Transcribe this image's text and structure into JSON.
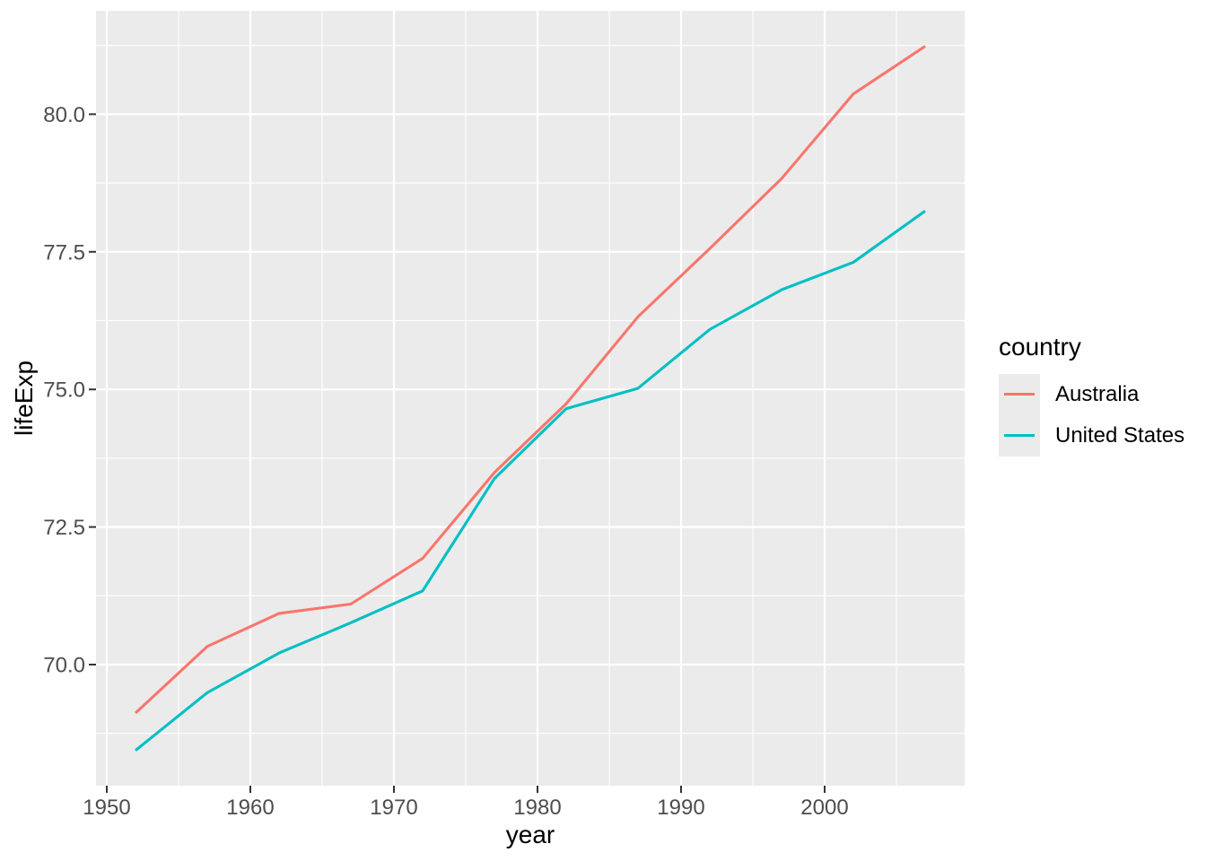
{
  "chart_data": {
    "type": "line",
    "title": "",
    "xlabel": "year",
    "ylabel": "lifeExp",
    "x": [
      1952,
      1957,
      1962,
      1967,
      1972,
      1977,
      1982,
      1987,
      1992,
      1997,
      2002,
      2007
    ],
    "series": [
      {
        "name": "Australia",
        "color": "#F8766D",
        "values": [
          69.12,
          70.33,
          70.93,
          71.1,
          71.93,
          73.49,
          74.74,
          76.32,
          77.56,
          78.83,
          80.37,
          81.235
        ]
      },
      {
        "name": "United States",
        "color": "#00BFC4",
        "values": [
          68.44,
          69.49,
          70.21,
          70.76,
          71.34,
          73.38,
          74.65,
          75.02,
          76.09,
          76.81,
          77.31,
          78.242
        ]
      }
    ],
    "xlim": [
      1949.25,
      2009.75
    ],
    "ylim": [
      67.8,
      81.88
    ],
    "x_ticks": [
      {
        "value": 1950,
        "label": "1950"
      },
      {
        "value": 1960,
        "label": "1960"
      },
      {
        "value": 1970,
        "label": "1970"
      },
      {
        "value": 1980,
        "label": "1980"
      },
      {
        "value": 1990,
        "label": "1990"
      },
      {
        "value": 2000,
        "label": "2000"
      }
    ],
    "y_ticks": [
      {
        "value": 70.0,
        "label": "70.0"
      },
      {
        "value": 72.5,
        "label": "72.5"
      },
      {
        "value": 75.0,
        "label": "75.0"
      },
      {
        "value": 77.5,
        "label": "77.5"
      },
      {
        "value": 80.0,
        "label": "80.0"
      }
    ],
    "x_minor_gridlines": [
      1955,
      1965,
      1975,
      1985,
      1995,
      2005
    ],
    "y_minor_gridlines": [
      68.75,
      71.25,
      73.75,
      76.25,
      78.75,
      81.25
    ],
    "grid": true,
    "panel_bg": "#EBEBEB",
    "grid_color": "#FFFFFF",
    "tick_mark_color": "#333333",
    "tick_label_color": "#4D4D4D",
    "axis_title_color": "#000000",
    "legend": {
      "title": "country",
      "position": "right",
      "key_bg": "#EBEBEB",
      "items": [
        {
          "label": "Australia",
          "color": "#F8766D"
        },
        {
          "label": "United States",
          "color": "#00BFC4"
        }
      ]
    }
  }
}
